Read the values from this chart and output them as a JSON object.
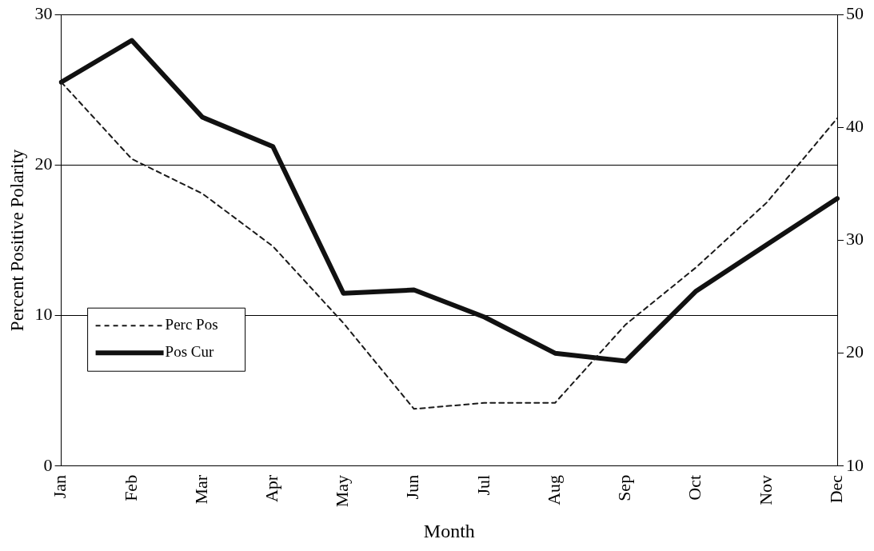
{
  "chart_data": {
    "type": "line",
    "xlabel": "Month",
    "ylabel": "Percent Positive Polarity",
    "categories": [
      "Jan",
      "Feb",
      "Mar",
      "Apr",
      "May",
      "Jun",
      "Jul",
      "Aug",
      "Sep",
      "Oct",
      "Nov",
      "Dec"
    ],
    "series": [
      {
        "name": "Perc Pos",
        "color": "#1a1a1a",
        "line_style": "dashed",
        "values": [
          25.5,
          20.4,
          18.1,
          14.6,
          9.5,
          3.8,
          4.2,
          4.2,
          9.4,
          13.2,
          17.5,
          23.1
        ]
      },
      {
        "name": "Pos Cur",
        "color": "#111111",
        "line_style": "solid",
        "axis": "y2",
        "values": [
          44.0,
          47.7,
          40.9,
          38.3,
          25.3,
          25.6,
          23.2,
          20.0,
          19.3,
          25.5,
          29.6,
          33.7
        ]
      }
    ],
    "ylim": [
      0,
      30
    ],
    "yticks": [
      0,
      10,
      20,
      30
    ],
    "y2lim": [
      10,
      50
    ],
    "y2ticks": [
      10,
      20,
      30,
      40,
      50
    ],
    "grid": "y",
    "legend": "left",
    "marker": "none"
  }
}
